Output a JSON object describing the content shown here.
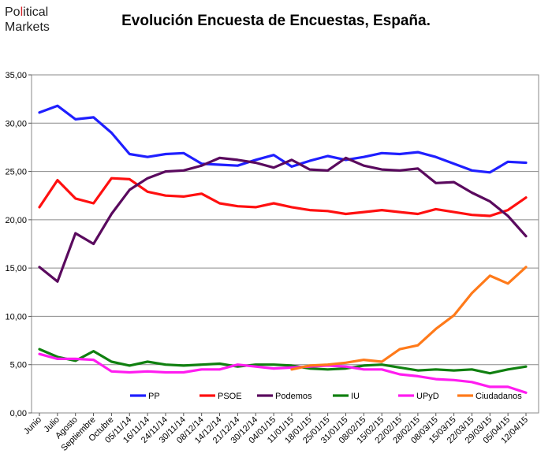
{
  "logo": {
    "line1_pre": "Po",
    "line1_accent": "l",
    "line1_post": "itical",
    "line2": "Markets"
  },
  "chart_data": {
    "type": "line",
    "title": "Evolución Encuesta de Encuestas, España.",
    "xlabel": "",
    "ylabel": "",
    "ylim": [
      0,
      35
    ],
    "yticks": [
      "0,00",
      "5,00",
      "10,00",
      "15,00",
      "20,00",
      "25,00",
      "30,00",
      "35,00"
    ],
    "grid": "horizontal",
    "legend_position": "bottom-inside",
    "categories": [
      "Junio",
      "Julio",
      "Agosto",
      "Septiembre",
      "Octubre",
      "05/11/14",
      "16/11/14",
      "24/11/14",
      "30/11/14",
      "08/12/14",
      "14/12/14",
      "21/12/14",
      "30/12/14",
      "04/01/15",
      "11/01/15",
      "18/01/15",
      "25/01/15",
      "31/01/15",
      "08/02/15",
      "15/02/15",
      "22/02/15",
      "28/02/15",
      "08/03/15",
      "15/03/15",
      "22/03/15",
      "29/03/15",
      "05/04/15",
      "12/04/15"
    ],
    "series": [
      {
        "name": "PP",
        "color": "#1f1fff",
        "values": [
          31.1,
          31.8,
          30.4,
          30.6,
          29.0,
          26.8,
          26.5,
          26.8,
          26.9,
          25.8,
          25.7,
          25.6,
          26.2,
          26.7,
          25.5,
          26.1,
          26.6,
          26.2,
          26.5,
          26.9,
          26.8,
          27.0,
          26.5,
          25.8,
          25.1,
          24.9,
          26.0,
          25.9
        ]
      },
      {
        "name": "PSOE",
        "color": "#ff1010",
        "values": [
          21.3,
          24.1,
          22.2,
          21.7,
          24.3,
          24.2,
          22.9,
          22.5,
          22.4,
          22.7,
          21.7,
          21.4,
          21.3,
          21.7,
          21.3,
          21.0,
          20.9,
          20.6,
          20.8,
          21.0,
          20.8,
          20.6,
          21.1,
          20.8,
          20.5,
          20.4,
          21.0,
          22.3
        ]
      },
      {
        "name": "Podemos",
        "color": "#5a0a5e",
        "values": [
          15.1,
          13.6,
          18.6,
          17.5,
          20.6,
          23.1,
          24.3,
          25.0,
          25.1,
          25.6,
          26.4,
          26.2,
          25.9,
          25.4,
          26.2,
          25.2,
          25.1,
          26.4,
          25.6,
          25.2,
          25.1,
          25.3,
          23.8,
          23.9,
          22.8,
          21.9,
          20.4,
          18.3
        ]
      },
      {
        "name": "IU",
        "color": "#108010",
        "values": [
          6.6,
          5.8,
          5.4,
          6.4,
          5.3,
          4.9,
          5.3,
          5.0,
          4.9,
          5.0,
          5.1,
          4.8,
          5.0,
          5.0,
          4.9,
          4.6,
          4.5,
          4.6,
          4.9,
          5.0,
          4.7,
          4.4,
          4.5,
          4.4,
          4.5,
          4.1,
          4.5,
          4.8
        ]
      },
      {
        "name": "UPyD",
        "color": "#ff1cf0",
        "values": [
          6.1,
          5.6,
          5.6,
          5.5,
          4.3,
          4.2,
          4.3,
          4.2,
          4.2,
          4.5,
          4.5,
          5.0,
          4.8,
          4.6,
          4.7,
          4.8,
          4.9,
          4.8,
          4.5,
          4.5,
          4.0,
          3.8,
          3.5,
          3.4,
          3.2,
          2.7,
          2.7,
          2.1
        ]
      },
      {
        "name": "Ciudadanos",
        "color": "#ff7a1a",
        "values": [
          null,
          null,
          null,
          null,
          null,
          null,
          null,
          null,
          null,
          null,
          null,
          null,
          null,
          null,
          4.5,
          4.9,
          5.0,
          5.2,
          5.5,
          5.3,
          6.6,
          7.0,
          8.7,
          10.1,
          12.4,
          14.2,
          13.4,
          15.1
        ]
      }
    ]
  }
}
